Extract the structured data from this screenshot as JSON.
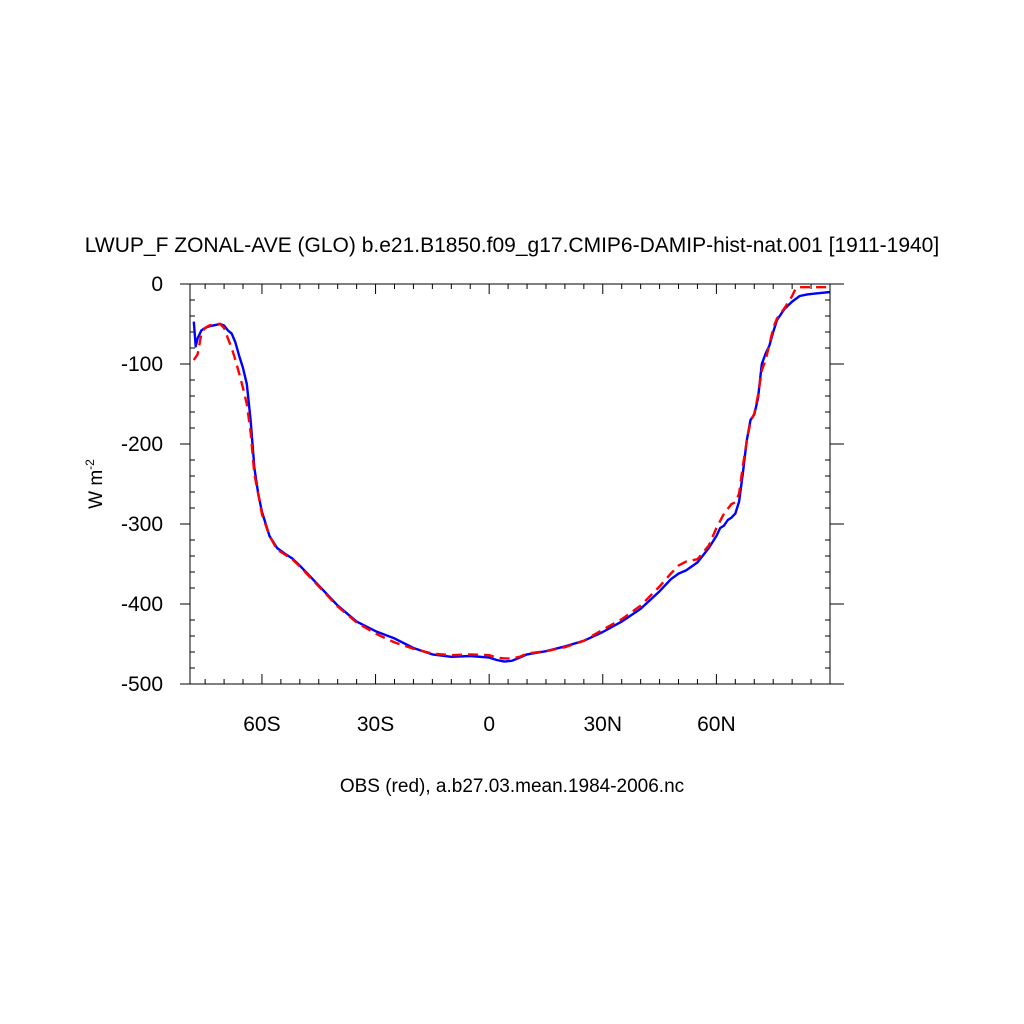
{
  "chart_data": {
    "type": "line",
    "title": "LWUP_F ZONAL-AVE (GLO) b.e21.B1850.f09_g17.CMIP6-DAMIP-hist-nat.001 [1911-1940]",
    "subtitle": "OBS (red), a.b27.03.mean.1984-2006.nc",
    "ylabel_base": "W m",
    "ylabel_sup": "-2",
    "xlim": [
      -79,
      90
    ],
    "ylim": [
      -500,
      0
    ],
    "x_ticks": [
      {
        "value": -60,
        "label": "60S"
      },
      {
        "value": -30,
        "label": "30S"
      },
      {
        "value": 0,
        "label": "0"
      },
      {
        "value": 30,
        "label": "30N"
      },
      {
        "value": 60,
        "label": "60N"
      }
    ],
    "y_ticks": [
      {
        "value": 0,
        "label": "0"
      },
      {
        "value": -100,
        "label": "-100"
      },
      {
        "value": -200,
        "label": "-200"
      },
      {
        "value": -300,
        "label": "-300"
      },
      {
        "value": -400,
        "label": "-400"
      },
      {
        "value": -500,
        "label": "-500"
      }
    ],
    "series": [
      {
        "color": "#0000ff",
        "dash": "solid",
        "x": [
          -78,
          -77.5,
          -77,
          -76,
          -75,
          -74,
          -73,
          -72,
          -71,
          -70,
          -69,
          -68,
          -67,
          -66,
          -65,
          -64,
          -63,
          -62,
          -61,
          -60,
          -58,
          -56,
          -54,
          -52,
          -50,
          -45,
          -40,
          -35,
          -30,
          -25,
          -20,
          -15,
          -10,
          -5,
          0,
          2,
          4,
          6,
          8,
          10,
          15,
          20,
          25,
          30,
          35,
          40,
          45,
          48,
          50,
          52,
          55,
          58,
          60,
          61,
          62,
          63,
          64,
          65,
          66,
          67,
          68,
          69,
          70,
          71,
          72,
          73,
          74,
          75,
          76,
          78,
          80,
          82,
          84,
          86,
          88,
          90
        ],
        "y": [
          -47,
          -78,
          -68,
          -58,
          -55,
          -53,
          -52,
          -51,
          -50,
          -52,
          -58,
          -62,
          -73,
          -90,
          -105,
          -125,
          -170,
          -230,
          -262,
          -285,
          -315,
          -330,
          -337,
          -343,
          -352,
          -377,
          -402,
          -422,
          -434,
          -443,
          -455,
          -463,
          -466,
          -465,
          -467,
          -470,
          -472,
          -471,
          -467,
          -463,
          -459,
          -453,
          -446,
          -435,
          -422,
          -406,
          -384,
          -369,
          -362,
          -358,
          -348,
          -330,
          -315,
          -305,
          -302,
          -295,
          -292,
          -287,
          -272,
          -236,
          -196,
          -170,
          -163,
          -143,
          -100,
          -87,
          -77,
          -60,
          -45,
          -31,
          -22,
          -15,
          -13,
          -12,
          -11,
          -10
        ]
      },
      {
        "color": "#ff0000",
        "dash": "dashed",
        "x": [
          -78,
          -77,
          -76,
          -75,
          -74,
          -73,
          -72,
          -71,
          -70,
          -69,
          -68,
          -67,
          -66,
          -65,
          -64,
          -63,
          -62,
          -61,
          -60,
          -58,
          -56,
          -54,
          -52,
          -50,
          -45,
          -40,
          -35,
          -30,
          -25,
          -20,
          -15,
          -10,
          -5,
          0,
          2,
          4,
          6,
          8,
          10,
          15,
          20,
          25,
          30,
          35,
          40,
          45,
          48,
          50,
          52,
          55,
          58,
          60,
          62,
          63,
          64,
          65,
          66,
          67,
          68,
          69,
          70,
          71,
          72,
          73,
          74,
          75,
          76,
          78,
          80,
          81,
          82,
          84,
          86,
          88,
          90
        ],
        "y": [
          -95,
          -88,
          -62,
          -55,
          -52,
          -51,
          -50,
          -50,
          -55,
          -68,
          -80,
          -95,
          -112,
          -130,
          -150,
          -185,
          -238,
          -262,
          -288,
          -315,
          -332,
          -338,
          -344,
          -353,
          -378,
          -403,
          -423,
          -437,
          -448,
          -456,
          -462,
          -464,
          -463,
          -464,
          -467,
          -468,
          -468,
          -466,
          -462,
          -459,
          -454,
          -446,
          -432,
          -419,
          -402,
          -378,
          -362,
          -352,
          -347,
          -344,
          -327,
          -305,
          -287,
          -281,
          -275,
          -273,
          -262,
          -227,
          -197,
          -172,
          -162,
          -139,
          -108,
          -95,
          -76,
          -55,
          -43,
          -30,
          -15,
          -5,
          -4,
          -4,
          -4,
          -4,
          -4
        ]
      }
    ]
  }
}
